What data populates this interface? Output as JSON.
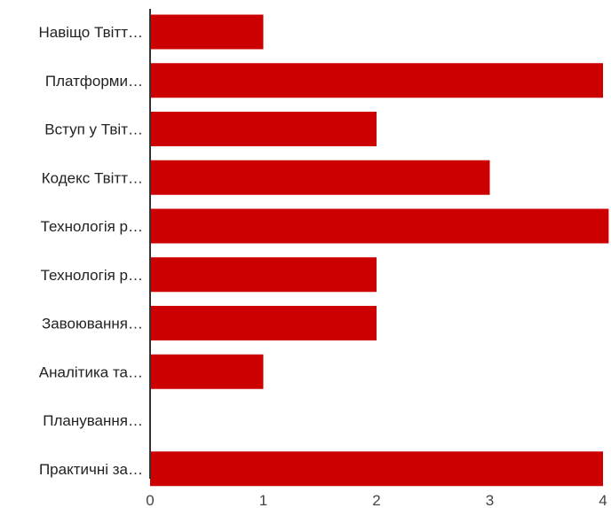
{
  "chart_data": {
    "type": "bar",
    "orientation": "horizontal",
    "categories": [
      "Навіщо Твітт…",
      "Платформи…",
      "Вступ у Твіт…",
      "Кодекс Твітт…",
      "Технологія р…",
      "Технологія р…",
      "Завоювання…",
      "Аналітика та…",
      "Планування…",
      "Практичні за…"
    ],
    "values": [
      1,
      4,
      2,
      3,
      4.05,
      2,
      2,
      1,
      0,
      4
    ],
    "xlim": [
      0,
      4.05
    ],
    "xticks": [
      "0",
      "1",
      "2",
      "3",
      "4"
    ],
    "title": "",
    "xlabel": "",
    "ylabel": "",
    "grid": false,
    "legend": "none",
    "bar_color": "#cc0000"
  }
}
